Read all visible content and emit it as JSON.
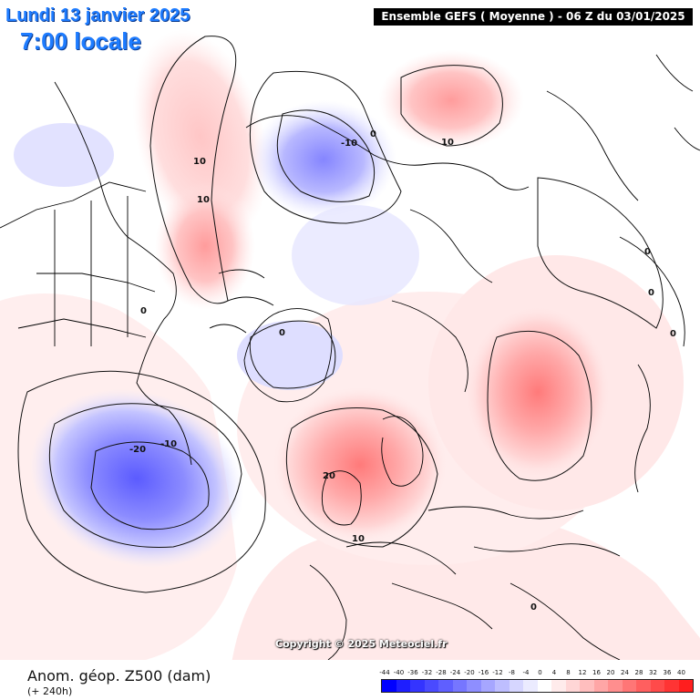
{
  "header": {
    "date": "Lundi 13 janvier 2025",
    "time": "7:00 locale",
    "model": "Ensemble GEFS  ( Moyenne )  -  06 Z du 03/01/2025"
  },
  "credit": "Copyright © 2025 Meteociel.fr",
  "field": {
    "title": "Anom. géop. Z500 (dam)",
    "lead": "(+ 240h)"
  },
  "colors": {
    "negative_strong": "#1a1aff",
    "negative_weak": "#dcdcff",
    "positive_weak": "#ffe4e4",
    "positive_strong": "#ff1a1a"
  },
  "legend": {
    "ticks": [
      "-44",
      "-40",
      "-36",
      "-32",
      "-28",
      "-24",
      "-20",
      "-16",
      "-12",
      "-8",
      "-4",
      "0",
      "4",
      "8",
      "12",
      "16",
      "20",
      "24",
      "28",
      "32",
      "36",
      "40"
    ],
    "colors": [
      "#0000ff",
      "#1e1eff",
      "#3434ff",
      "#4a4aff",
      "#5f5fff",
      "#7676ff",
      "#8e8eff",
      "#a6a6ff",
      "#bebeff",
      "#d6d6ff",
      "#ebebff",
      "#ffffff",
      "#ffebeb",
      "#ffd6d6",
      "#ffbebe",
      "#ffa6a6",
      "#ff8e8e",
      "#ff7676",
      "#ff5f5f",
      "#ff4a4a",
      "#ff3434",
      "#ff1e1e"
    ]
  },
  "contour_labels": [
    {
      "id": "alaska-10",
      "text": "10"
    },
    {
      "id": "siberia-minus10",
      "text": "-10"
    },
    {
      "id": "siberia-0",
      "text": "0"
    },
    {
      "id": "arctic-ridge-10",
      "text": "10"
    },
    {
      "id": "canada-0",
      "text": "0"
    },
    {
      "id": "east-asia-10",
      "text": "10"
    },
    {
      "id": "asia-0a",
      "text": "0"
    },
    {
      "id": "asia-0b",
      "text": "0"
    },
    {
      "id": "asia-0c",
      "text": "0"
    },
    {
      "id": "pacific-minus20",
      "text": "-20"
    },
    {
      "id": "pacific-minus10",
      "text": "-10"
    },
    {
      "id": "atlantic-20",
      "text": "20"
    },
    {
      "id": "europe-10",
      "text": "10"
    },
    {
      "id": "africa-0",
      "text": "0"
    },
    {
      "id": "greenland-0",
      "text": "0"
    }
  ]
}
